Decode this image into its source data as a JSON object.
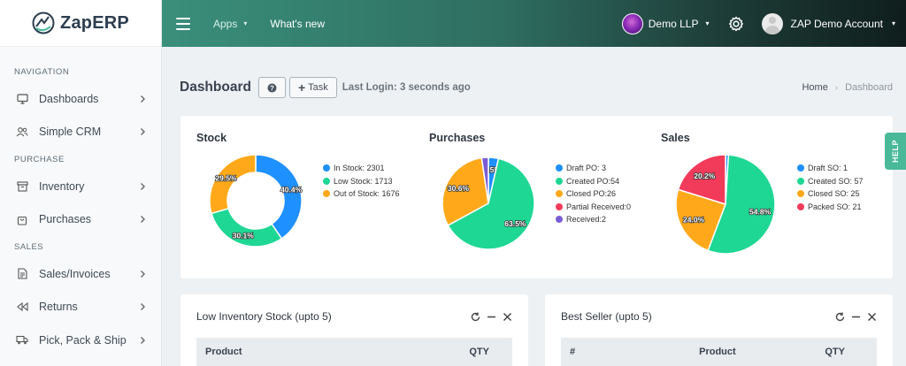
{
  "app": {
    "logo_text": "ZapERP"
  },
  "topbar": {
    "apps_label": "Apps",
    "whats_new_label": "What's new",
    "company_label": "Demo LLP",
    "user_label": "ZAP Demo Account"
  },
  "sidebar": {
    "sections": [
      {
        "title": "NAVIGATION",
        "items": [
          {
            "label": "Dashboards",
            "icon": "monitor-icon"
          },
          {
            "label": "Simple CRM",
            "icon": "users-icon"
          }
        ]
      },
      {
        "title": "PURCHASE",
        "items": [
          {
            "label": "Inventory",
            "icon": "archive-icon"
          },
          {
            "label": "Purchases",
            "icon": "shopping-bag-icon"
          }
        ]
      },
      {
        "title": "SALES",
        "items": [
          {
            "label": "Sales/Invoices",
            "icon": "document-icon"
          },
          {
            "label": "Returns",
            "icon": "rewind-icon"
          },
          {
            "label": "Pick, Pack & Ship",
            "icon": "truck-icon"
          }
        ]
      }
    ]
  },
  "page": {
    "title": "Dashboard",
    "task_label": "Task",
    "last_login": "Last Login: 3 seconds ago",
    "breadcrumb": {
      "home": "Home",
      "current": "Dashboard"
    }
  },
  "help_tab": "HELP",
  "chart_data": [
    {
      "type": "pie",
      "title": "Stock",
      "donut": true,
      "slices": [
        {
          "label": "In Stock: 2301",
          "value": 2301,
          "pct_label": "40.4%",
          "color": "#1e90ff"
        },
        {
          "label": "Low Stock: 1713",
          "value": 1713,
          "pct_label": "30.1%",
          "color": "#1ed794"
        },
        {
          "label": "Out of Stock: 1676",
          "value": 1676,
          "pct_label": "29.5%",
          "color": "#ffa91a"
        }
      ],
      "legend_position": "right"
    },
    {
      "type": "pie",
      "title": "Purchases",
      "donut": false,
      "slices": [
        {
          "label": "Draft PO: 3",
          "value": 3,
          "pct_label": "3.5%",
          "color": "#1e90ff"
        },
        {
          "label": "Created PO:54",
          "value": 54,
          "pct_label": "63.5%",
          "color": "#1ed794"
        },
        {
          "label": "Closed PO:26",
          "value": 26,
          "pct_label": "30.6%",
          "color": "#ffa91a"
        },
        {
          "label": "Partial Received:0",
          "value": 0,
          "pct_label": "",
          "color": "#f23a5a"
        },
        {
          "label": "Received:2",
          "value": 2,
          "pct_label": "",
          "color": "#7a5cd6"
        }
      ],
      "legend_position": "right"
    },
    {
      "type": "pie",
      "title": "Sales",
      "donut": false,
      "slices": [
        {
          "label": "Draft SO: 1",
          "value": 1,
          "pct_label": "",
          "color": "#1e90ff"
        },
        {
          "label": "Created SO: 57",
          "value": 57,
          "pct_label": "54.8%",
          "color": "#1ed794"
        },
        {
          "label": "Closed SO: 25",
          "value": 25,
          "pct_label": "24.0%",
          "color": "#ffa91a"
        },
        {
          "label": "Packed SO: 21",
          "value": 21,
          "pct_label": "20.2%",
          "color": "#f23a5a"
        }
      ],
      "legend_position": "right"
    }
  ],
  "low_inventory": {
    "title": "Low Inventory Stock (upto 5)",
    "columns": [
      "Product",
      "QTY"
    ]
  },
  "best_seller": {
    "title": "Best Seller (upto 5)",
    "columns": [
      "#",
      "Product",
      "QTY"
    ]
  }
}
